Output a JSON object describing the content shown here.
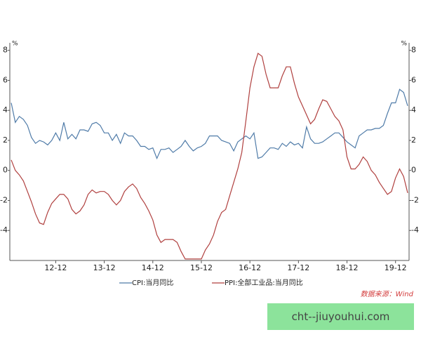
{
  "chart_data": {
    "type": "line",
    "unit_label": "%",
    "categories": [
      null,
      null,
      null,
      null,
      null,
      null,
      null,
      null,
      null,
      null,
      null,
      "12-12",
      null,
      null,
      null,
      null,
      null,
      null,
      null,
      null,
      null,
      null,
      null,
      "13-12",
      null,
      null,
      null,
      null,
      null,
      null,
      null,
      null,
      null,
      null,
      null,
      "14-12",
      null,
      null,
      null,
      null,
      null,
      null,
      null,
      null,
      null,
      null,
      null,
      "15-12",
      null,
      null,
      null,
      null,
      null,
      null,
      null,
      null,
      null,
      null,
      null,
      "16-12",
      null,
      null,
      null,
      null,
      null,
      null,
      null,
      null,
      null,
      null,
      null,
      "17-12",
      null,
      null,
      null,
      null,
      null,
      null,
      null,
      null,
      null,
      null,
      null,
      "18-12",
      null,
      null,
      null,
      null,
      null,
      null,
      null,
      null,
      null,
      null,
      null,
      "19-12",
      null,
      null,
      null
    ],
    "series": [
      {
        "name": "CPI:当月同比",
        "color": "#4f7ba8",
        "values": [
          4.5,
          3.2,
          3.6,
          3.4,
          3.0,
          2.2,
          1.8,
          2.0,
          1.9,
          1.7,
          2.0,
          2.5,
          2.0,
          3.2,
          2.1,
          2.4,
          2.1,
          2.7,
          2.7,
          2.6,
          3.1,
          3.2,
          3.0,
          2.5,
          2.5,
          2.0,
          2.4,
          1.8,
          2.5,
          2.3,
          2.3,
          2.0,
          1.6,
          1.6,
          1.4,
          1.5,
          0.8,
          1.4,
          1.4,
          1.5,
          1.2,
          1.4,
          1.6,
          2.0,
          1.6,
          1.3,
          1.5,
          1.6,
          1.8,
          2.3,
          2.3,
          2.3,
          2.0,
          1.9,
          1.8,
          1.3,
          1.9,
          2.1,
          2.3,
          2.1,
          2.5,
          0.8,
          0.9,
          1.2,
          1.5,
          1.5,
          1.4,
          1.8,
          1.6,
          1.9,
          1.7,
          1.8,
          1.5,
          2.9,
          2.1,
          1.8,
          1.8,
          1.9,
          2.1,
          2.3,
          2.5,
          2.5,
          2.2,
          1.9,
          1.7,
          1.5,
          2.3,
          2.5,
          2.7,
          2.7,
          2.8,
          2.8,
          3.0,
          3.8,
          4.5,
          4.5,
          5.4,
          5.2,
          4.3
        ]
      },
      {
        "name": "PPI:全部工业品:当月同比",
        "color": "#b0403f",
        "values": [
          0.7,
          0.0,
          -0.3,
          -0.7,
          -1.4,
          -2.1,
          -2.9,
          -3.5,
          -3.6,
          -2.8,
          -2.2,
          -1.9,
          -1.6,
          -1.6,
          -1.9,
          -2.6,
          -2.9,
          -2.7,
          -2.3,
          -1.6,
          -1.3,
          -1.5,
          -1.4,
          -1.4,
          -1.6,
          -2.0,
          -2.3,
          -2.0,
          -1.4,
          -1.1,
          -0.9,
          -1.2,
          -1.8,
          -2.2,
          -2.7,
          -3.3,
          -4.3,
          -4.8,
          -4.6,
          -4.6,
          -4.6,
          -4.8,
          -5.4,
          -5.9,
          -5.9,
          -5.9,
          -5.9,
          -5.9,
          -5.3,
          -4.9,
          -4.3,
          -3.4,
          -2.8,
          -2.6,
          -1.7,
          -0.8,
          0.1,
          1.2,
          3.3,
          5.5,
          6.9,
          7.8,
          7.6,
          6.4,
          5.5,
          5.5,
          5.5,
          6.3,
          6.9,
          6.9,
          5.8,
          4.9,
          4.3,
          3.7,
          3.1,
          3.4,
          4.1,
          4.7,
          4.6,
          4.1,
          3.6,
          3.3,
          2.7,
          0.9,
          0.1,
          0.1,
          0.4,
          0.9,
          0.6,
          0.0,
          -0.3,
          -0.8,
          -1.2,
          -1.6,
          -1.4,
          -0.5,
          0.1,
          -0.4,
          -1.5
        ]
      }
    ],
    "ylim": [
      -6,
      8.5
    ],
    "yticks": [
      -4,
      -2,
      0,
      2,
      4,
      6,
      8
    ]
  },
  "source": "数据来源：Wind",
  "watermark": "cht--jiuyouhui.com"
}
